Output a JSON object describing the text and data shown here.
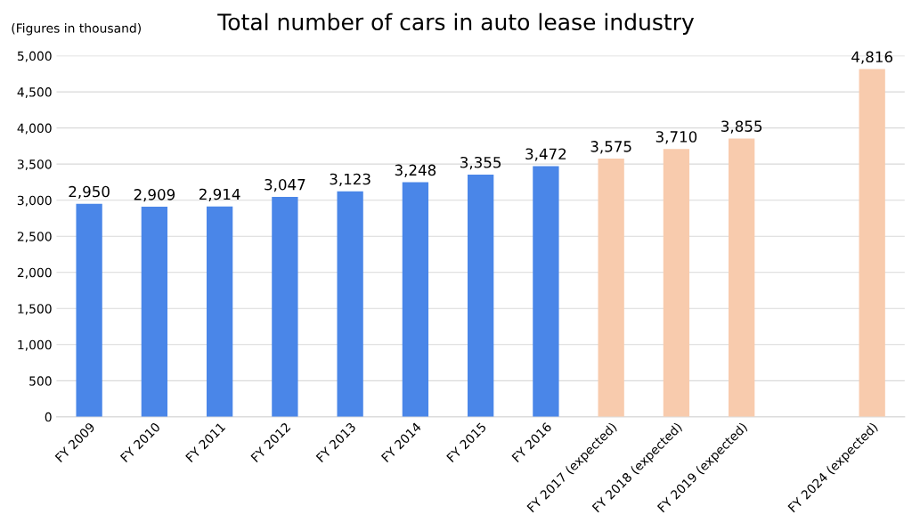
{
  "chart_data": {
    "type": "bar",
    "title": "Total number of cars in auto lease industry",
    "ylabel": "(Figures in thousand)",
    "categories": [
      "FY 2009",
      "FY 2010",
      "FY 2011",
      "FY 2012",
      "FY 2013",
      "FY 2014",
      "FY 2015",
      "FY 2016",
      "FY 2017 (expected)",
      "FY 2018 (expected)",
      "FY 2019 (expected)",
      null,
      "FY 2024 (expected)"
    ],
    "values": [
      2950,
      2909,
      2914,
      3047,
      3123,
      3248,
      3355,
      3472,
      3575,
      3710,
      3855,
      null,
      4816
    ],
    "colors": [
      "#4a86e8",
      "#4a86e8",
      "#4a86e8",
      "#4a86e8",
      "#4a86e8",
      "#4a86e8",
      "#4a86e8",
      "#4a86e8",
      "#f8cbad",
      "#f8cbad",
      "#f8cbad",
      "#f8cbad",
      "#f8cbad"
    ],
    "ylim": [
      0,
      5000
    ],
    "yticks": [
      {
        "value": 0,
        "label": "0"
      },
      {
        "value": 500,
        "label": "500"
      },
      {
        "value": 1000,
        "label": "1,000"
      },
      {
        "value": 1500,
        "label": "1,500"
      },
      {
        "value": 2000,
        "label": "2,000"
      },
      {
        "value": 2500,
        "label": "2,500"
      },
      {
        "value": 3000,
        "label": "3,000"
      },
      {
        "value": 3500,
        "label": "3,500"
      },
      {
        "value": 4000,
        "label": "4,000"
      },
      {
        "value": 4500,
        "label": "4,500"
      },
      {
        "value": 5000,
        "label": "5,000"
      }
    ],
    "value_labels": [
      "2,950",
      "2,909",
      "2,914",
      "3,047",
      "3,123",
      "3,248",
      "3,355",
      "3,472",
      "3,575",
      "3,710",
      "3,855",
      null,
      "4,816"
    ],
    "grid": "y"
  }
}
